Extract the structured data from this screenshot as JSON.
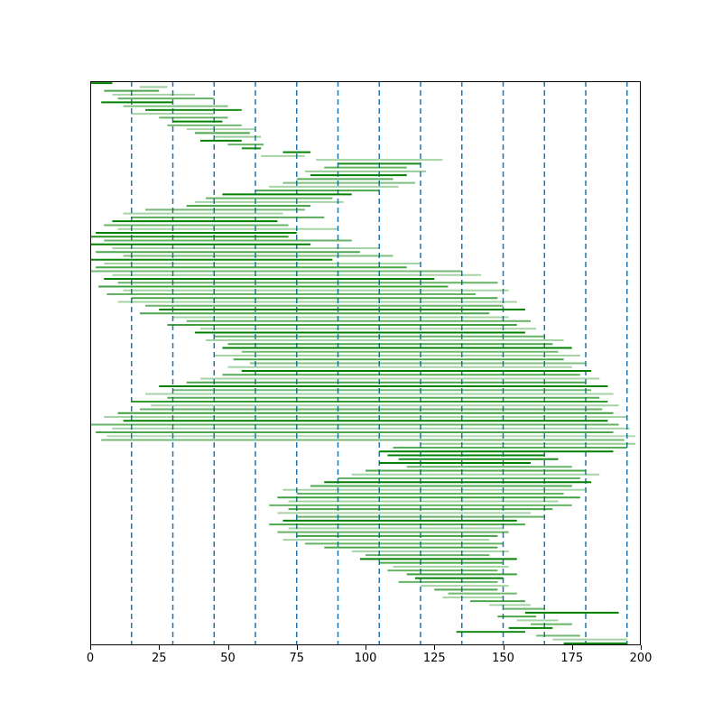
{
  "chart_data": {
    "type": "line",
    "subtype": "horizontal-interval-segments",
    "title": "",
    "xlabel": "",
    "ylabel": "",
    "xlim": [
      0,
      200
    ],
    "x_ticks": [
      0,
      25,
      50,
      75,
      100,
      125,
      150,
      175,
      200
    ],
    "gridlines_x": [
      15,
      30,
      45,
      60,
      75,
      90,
      105,
      120,
      135,
      150,
      165,
      180,
      195
    ],
    "gridline_color": "#1f77b4",
    "gridline_style": "dashed",
    "segment_color": "#008000",
    "frame_color": "#000000",
    "legend": "none",
    "segments": [
      [
        0,
        8,
        1.0
      ],
      [
        18,
        28,
        0.4
      ],
      [
        5,
        25,
        0.7
      ],
      [
        8,
        38,
        0.35
      ],
      [
        10,
        45,
        0.6
      ],
      [
        4,
        30,
        1.0
      ],
      [
        12,
        50,
        0.5
      ],
      [
        20,
        55,
        0.9
      ],
      [
        15,
        45,
        0.35
      ],
      [
        25,
        50,
        0.6
      ],
      [
        30,
        48,
        1.0
      ],
      [
        28,
        55,
        0.55
      ],
      [
        35,
        60,
        0.35
      ],
      [
        38,
        58,
        0.7
      ],
      [
        45,
        62,
        0.4
      ],
      [
        40,
        55,
        1.0
      ],
      [
        50,
        63,
        0.6
      ],
      [
        55,
        62,
        0.9
      ],
      [
        70,
        80,
        1.0
      ],
      [
        62,
        78,
        0.35
      ],
      [
        82,
        128,
        0.35
      ],
      [
        90,
        120,
        0.9
      ],
      [
        85,
        115,
        0.6
      ],
      [
        78,
        122,
        0.4
      ],
      [
        80,
        115,
        1.0
      ],
      [
        75,
        110,
        0.65
      ],
      [
        70,
        118,
        0.5
      ],
      [
        65,
        112,
        0.35
      ],
      [
        60,
        105,
        0.7
      ],
      [
        48,
        95,
        1.0
      ],
      [
        42,
        88,
        0.6
      ],
      [
        38,
        92,
        0.35
      ],
      [
        35,
        80,
        0.75
      ],
      [
        20,
        78,
        0.55
      ],
      [
        12,
        70,
        0.35
      ],
      [
        15,
        85,
        0.65
      ],
      [
        8,
        68,
        1.0
      ],
      [
        5,
        72,
        0.6
      ],
      [
        10,
        90,
        0.35
      ],
      [
        2,
        75,
        1.0
      ],
      [
        0,
        72,
        0.85
      ],
      [
        5,
        95,
        0.6
      ],
      [
        0,
        80,
        1.0
      ],
      [
        8,
        105,
        0.35
      ],
      [
        2,
        98,
        0.7
      ],
      [
        12,
        110,
        0.5
      ],
      [
        0,
        88,
        0.95
      ],
      [
        5,
        120,
        0.35
      ],
      [
        2,
        115,
        0.7
      ],
      [
        0,
        135,
        0.55
      ],
      [
        8,
        142,
        0.35
      ],
      [
        5,
        125,
        1.0
      ],
      [
        10,
        148,
        0.6
      ],
      [
        3,
        130,
        0.75
      ],
      [
        12,
        152,
        0.35
      ],
      [
        6,
        140,
        0.6
      ],
      [
        15,
        148,
        0.7
      ],
      [
        10,
        155,
        0.35
      ],
      [
        20,
        150,
        0.6
      ],
      [
        25,
        158,
        1.0
      ],
      [
        18,
        145,
        0.7
      ],
      [
        30,
        152,
        0.35
      ],
      [
        35,
        160,
        0.6
      ],
      [
        28,
        155,
        0.75
      ],
      [
        40,
        162,
        0.35
      ],
      [
        38,
        158,
        1.0
      ],
      [
        45,
        165,
        0.6
      ],
      [
        42,
        172,
        0.35
      ],
      [
        50,
        168,
        0.7
      ],
      [
        48,
        175,
        1.0
      ],
      [
        55,
        170,
        0.55
      ],
      [
        45,
        178,
        0.35
      ],
      [
        52,
        172,
        0.7
      ],
      [
        58,
        180,
        0.5
      ],
      [
        50,
        175,
        0.35
      ],
      [
        55,
        182,
        1.0
      ],
      [
        48,
        178,
        0.65
      ],
      [
        40,
        185,
        0.35
      ],
      [
        35,
        180,
        0.7
      ],
      [
        25,
        188,
        1.0
      ],
      [
        30,
        182,
        0.55
      ],
      [
        20,
        190,
        0.35
      ],
      [
        28,
        185,
        0.65
      ],
      [
        15,
        188,
        0.8
      ],
      [
        22,
        192,
        0.35
      ],
      [
        18,
        186,
        0.6
      ],
      [
        10,
        190,
        0.75
      ],
      [
        5,
        195,
        0.35
      ],
      [
        12,
        188,
        1.0
      ],
      [
        0,
        192,
        0.6
      ],
      [
        8,
        196,
        0.35
      ],
      [
        2,
        190,
        0.7
      ],
      [
        6,
        198,
        0.3
      ],
      [
        4,
        194,
        0.55
      ],
      [
        120,
        198,
        0.4
      ],
      [
        110,
        195,
        0.65
      ],
      [
        105,
        190,
        1.0
      ],
      [
        108,
        165,
        1.0
      ],
      [
        112,
        170,
        0.9
      ],
      [
        105,
        160,
        1.0
      ],
      [
        115,
        175,
        0.6
      ],
      [
        100,
        180,
        0.7
      ],
      [
        95,
        185,
        0.35
      ],
      [
        90,
        178,
        0.6
      ],
      [
        85,
        182,
        1.0
      ],
      [
        80,
        175,
        0.7
      ],
      [
        70,
        180,
        0.35
      ],
      [
        75,
        172,
        0.6
      ],
      [
        68,
        178,
        0.75
      ],
      [
        72,
        170,
        0.35
      ],
      [
        65,
        175,
        0.6
      ],
      [
        72,
        168,
        0.7
      ],
      [
        68,
        160,
        0.35
      ],
      [
        75,
        165,
        0.6
      ],
      [
        70,
        155,
        1.0
      ],
      [
        65,
        158,
        0.7
      ],
      [
        72,
        150,
        0.35
      ],
      [
        68,
        152,
        0.6
      ],
      [
        75,
        148,
        0.75
      ],
      [
        70,
        145,
        0.35
      ],
      [
        78,
        150,
        0.6
      ],
      [
        85,
        148,
        0.7
      ],
      [
        95,
        152,
        0.35
      ],
      [
        100,
        145,
        0.6
      ],
      [
        98,
        155,
        1.0
      ],
      [
        105,
        150,
        0.7
      ],
      [
        110,
        152,
        0.35
      ],
      [
        108,
        148,
        0.6
      ],
      [
        115,
        155,
        0.75
      ],
      [
        118,
        150,
        1.0
      ],
      [
        112,
        148,
        0.6
      ],
      [
        120,
        152,
        0.35
      ],
      [
        125,
        148,
        0.7
      ],
      [
        130,
        155,
        0.55
      ],
      [
        128,
        150,
        0.35
      ],
      [
        138,
        158,
        0.7
      ],
      [
        145,
        160,
        0.35
      ],
      [
        150,
        165,
        0.6
      ],
      [
        158,
        192,
        1.0
      ],
      [
        148,
        162,
        0.7
      ],
      [
        155,
        170,
        0.35
      ],
      [
        160,
        175,
        0.6
      ],
      [
        152,
        168,
        1.0
      ],
      [
        133,
        158,
        0.9
      ],
      [
        162,
        178,
        0.55
      ],
      [
        168,
        195,
        0.35
      ],
      [
        172,
        195,
        1.0
      ]
    ]
  }
}
